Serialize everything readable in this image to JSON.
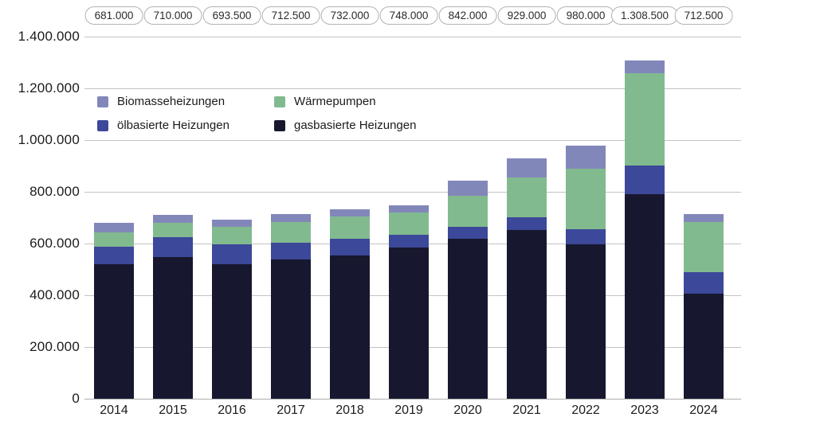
{
  "chart_data": {
    "type": "bar",
    "stacked": true,
    "title": "",
    "xlabel": "",
    "ylabel": "",
    "categories": [
      "2014",
      "2015",
      "2016",
      "2017",
      "2018",
      "2019",
      "2020",
      "2021",
      "2022",
      "2023",
      "2024"
    ],
    "series": [
      {
        "name": "gasbasierte Heizungen",
        "color": "#171830",
        "values": [
          519500,
          547000,
          520000,
          539000,
          555000,
          584000,
          618500,
          653000,
          598000,
          790500,
          405000
        ]
      },
      {
        "name": "ölbasierte Heizungen",
        "color": "#3c4899",
        "values": [
          68000,
          76500,
          77000,
          65000,
          62000,
          48500,
          45500,
          49500,
          56000,
          112500,
          84500
        ]
      },
      {
        "name": "Wärmepumpen",
        "color": "#82ba8f",
        "values": [
          57000,
          57000,
          66500,
          79000,
          88000,
          88000,
          120000,
          154000,
          236000,
          356000,
          193000
        ]
      },
      {
        "name": "Biomasseheizungen",
        "color": "#8287ba",
        "values": [
          36500,
          29500,
          30000,
          29500,
          27000,
          27500,
          58000,
          72500,
          90000,
          49500,
          30000
        ]
      }
    ],
    "totals": [
      681000,
      710000,
      693500,
      712500,
      732000,
      748000,
      842000,
      929000,
      980000,
      1308500,
      712500
    ],
    "total_labels": [
      "681.000",
      "710.000",
      "693.500",
      "712.500",
      "732.000",
      "748.000",
      "842.000",
      "929.000",
      "980.000",
      "1.308.500",
      "712.500"
    ],
    "y_axis": {
      "range": [
        0,
        1400000
      ],
      "grid": true,
      "ticks": [
        0,
        200000,
        400000,
        600000,
        800000,
        1000000,
        1200000,
        1400000
      ],
      "tick_labels": [
        "0",
        "200.000",
        "400.000",
        "600.000",
        "800.000",
        "1.000.000",
        "1.200.000",
        "1.400.000"
      ]
    },
    "legend": {
      "position": "top-left-inside",
      "items": [
        {
          "label": "Biomasseheizungen",
          "color": "#8287ba"
        },
        {
          "label": "Wärmepumpen",
          "color": "#82ba8f"
        },
        {
          "label": "ölbasierte Heizungen",
          "color": "#3c4899"
        },
        {
          "label": "gasbasierte Heizungen",
          "color": "#171830"
        }
      ]
    }
  }
}
